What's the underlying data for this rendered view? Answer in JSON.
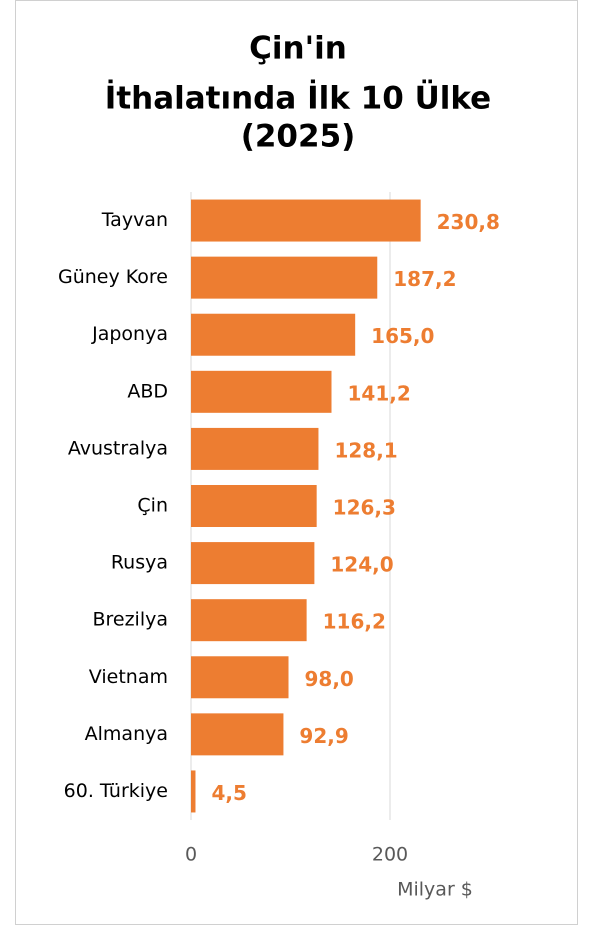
{
  "chart_data": {
    "type": "bar",
    "orientation": "horizontal",
    "title": [
      "Çin'in",
      "İthalatında İlk 10 Ülke",
      "(2025)"
    ],
    "categories": [
      "Tayvan",
      "Güney Kore",
      "Japonya",
      "ABD",
      "Avustralya",
      "Çin",
      "Rusya",
      "Brezilya",
      "Vietnam",
      "Almanya",
      "60. Türkiye"
    ],
    "values": [
      230.8,
      187.2,
      165.0,
      141.2,
      128.1,
      126.3,
      124.0,
      116.2,
      98.0,
      92.9,
      4.5
    ],
    "value_labels": [
      "230,8",
      "187,2",
      "165,0",
      "141,2",
      "128,1",
      "126,3",
      "124,0",
      "116,2",
      "98,0",
      "92,9",
      "4,5"
    ],
    "color": "#ed7d31",
    "xlim": [
      0,
      300
    ],
    "xticks": [
      0,
      200
    ],
    "grid": true,
    "x_label": "Milyar $"
  }
}
